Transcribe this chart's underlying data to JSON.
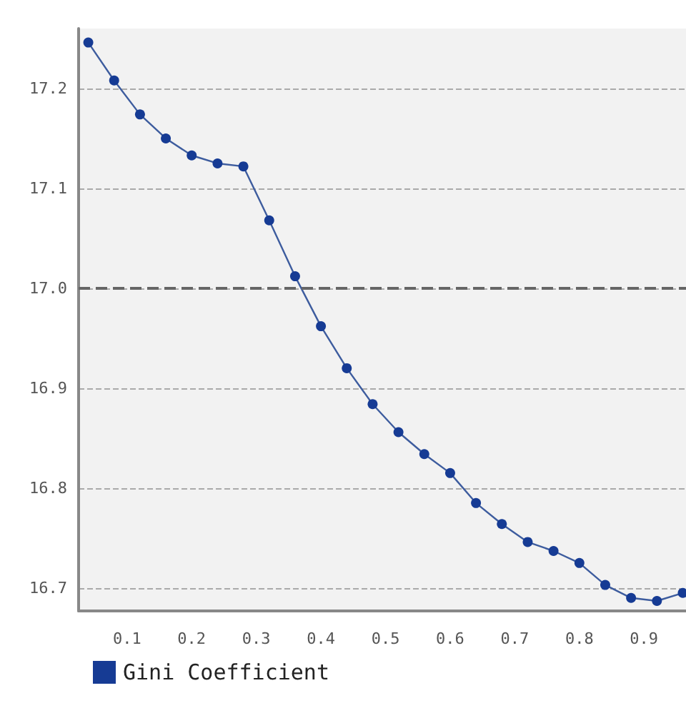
{
  "chart_data": {
    "type": "line",
    "x": [
      0.04,
      0.08,
      0.12,
      0.16,
      0.2,
      0.24,
      0.28,
      0.32,
      0.36,
      0.4,
      0.44,
      0.48,
      0.52,
      0.56,
      0.6,
      0.64,
      0.68,
      0.72,
      0.76,
      0.8,
      0.84,
      0.88,
      0.92,
      0.96
    ],
    "series": [
      {
        "name": "Gini Coefficient",
        "color": "#163b94",
        "values": [
          17.246,
          17.208,
          17.174,
          17.15,
          17.133,
          17.125,
          17.122,
          17.068,
          17.012,
          16.962,
          16.92,
          16.884,
          16.856,
          16.834,
          16.815,
          16.785,
          16.764,
          16.746,
          16.737,
          16.725,
          16.703,
          16.69,
          16.687,
          16.695
        ]
      }
    ],
    "xlim": [
      0.025,
      0.965
    ],
    "xticks": [
      0.1,
      0.2,
      0.3,
      0.4,
      0.5,
      0.6,
      0.7,
      0.8,
      0.9
    ],
    "ylim": [
      16.677,
      17.26
    ],
    "yticks": [
      16.7,
      16.8,
      16.9,
      {
        "value": 17,
        "label": "17.0"
      },
      17.1,
      17.2
    ],
    "ref_lines": [
      {
        "axis": "y",
        "value": 17.0,
        "color": "#666666",
        "line_style": "dashed"
      }
    ],
    "grid": "y",
    "legend": "bottom left",
    "marker": "circle",
    "line_style": "solid"
  }
}
